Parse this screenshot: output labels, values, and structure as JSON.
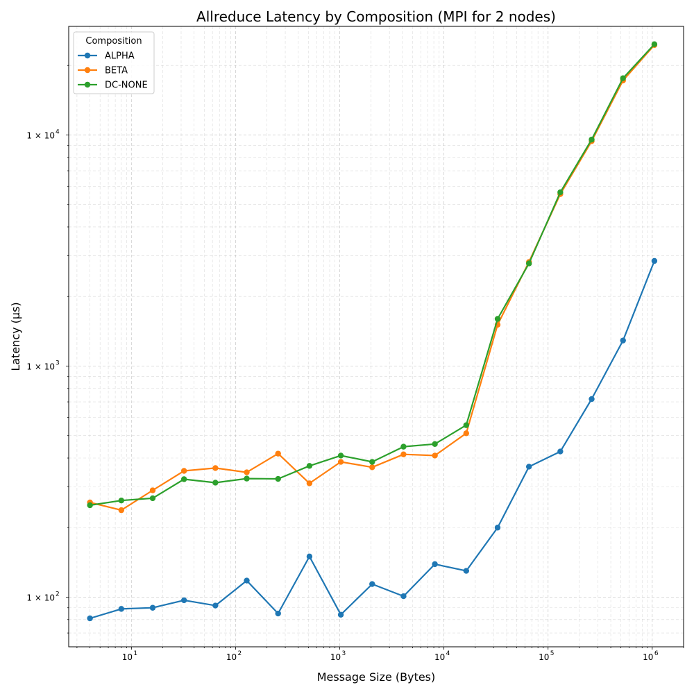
{
  "chart_data": {
    "type": "line",
    "title": "Allreduce Latency by Composition (MPI for 2 nodes)",
    "xlabel": "Message Size (Bytes)",
    "ylabel": "Latency (µs)",
    "xscale": "log",
    "yscale": "log",
    "xlim": [
      2.5,
      2000000
    ],
    "ylim": [
      61,
      29500
    ],
    "x_ticks": [
      {
        "value": 10,
        "base": "10",
        "exp": "1"
      },
      {
        "value": 100,
        "base": "10",
        "exp": "2"
      },
      {
        "value": 1000,
        "base": "10",
        "exp": "3"
      },
      {
        "value": 10000,
        "base": "10",
        "exp": "4"
      },
      {
        "value": 100000,
        "base": "10",
        "exp": "5"
      },
      {
        "value": 1000000,
        "base": "10",
        "exp": "6"
      }
    ],
    "y_ticks": [
      {
        "value": 100,
        "prefix": "1 × ",
        "base": "10",
        "exp": "2"
      },
      {
        "value": 1000,
        "prefix": "1 × ",
        "base": "10",
        "exp": "3"
      },
      {
        "value": 10000,
        "prefix": "1 × ",
        "base": "10",
        "exp": "4"
      }
    ],
    "grid": true,
    "legend": {
      "title": "Composition",
      "position": "top-left"
    },
    "x": [
      4,
      8,
      16,
      32,
      64,
      128,
      256,
      512,
      1024,
      2048,
      4096,
      8192,
      16384,
      32768,
      65536,
      131072,
      262144,
      524288,
      1048576
    ],
    "series": [
      {
        "name": "ALPHA",
        "color": "#1f77b4",
        "values": [
          81,
          89,
          90,
          97,
          92,
          118,
          85,
          150,
          84,
          114,
          101,
          139,
          130,
          200,
          367,
          427,
          720,
          1290,
          2850
        ]
      },
      {
        "name": "BETA",
        "color": "#ff7f0e",
        "values": [
          257,
          238,
          290,
          352,
          362,
          347,
          418,
          311,
          385,
          365,
          415,
          410,
          512,
          1510,
          2820,
          5550,
          9400,
          17200,
          24500
        ]
      },
      {
        "name": "DC-NONE",
        "color": "#2ca02c",
        "values": [
          250,
          262,
          268,
          324,
          313,
          326,
          325,
          370,
          410,
          385,
          448,
          460,
          555,
          1600,
          2780,
          5650,
          9550,
          17600,
          24700
        ]
      }
    ]
  }
}
